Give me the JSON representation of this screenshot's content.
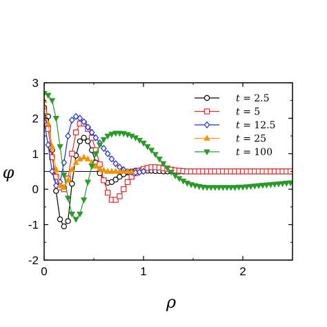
{
  "chart_data": {
    "type": "line",
    "xlabel": "ρ",
    "ylabel": "φ",
    "xlim": [
      0,
      2.5
    ],
    "ylim": [
      -2,
      3
    ],
    "xticks": [
      0,
      1,
      2
    ],
    "yticks": [
      -2,
      -1,
      0,
      1,
      2,
      3
    ],
    "xtick_labels": [
      "0",
      "1",
      "2"
    ],
    "ytick_labels": [
      "-2",
      "-1",
      "0",
      "1",
      "2",
      "3"
    ],
    "grid": false,
    "legend_position": "top-right",
    "reference_line": {
      "y": 0.5
    },
    "series": [
      {
        "name": "t = 2.5",
        "label_var": "t",
        "label_val": "= 2.5",
        "color": "#000000",
        "marker": "circle",
        "x": [
          0.0,
          0.04,
          0.08,
          0.12,
          0.16,
          0.2,
          0.24,
          0.28,
          0.32,
          0.36,
          0.4,
          0.44,
          0.48,
          0.52,
          0.56,
          0.6,
          0.64,
          0.68,
          0.72,
          0.76,
          0.8,
          0.84,
          0.88,
          0.92,
          0.96,
          1.0,
          1.04,
          1.08,
          1.12,
          1.16,
          1.2,
          1.24,
          1.28,
          1.32,
          1.36,
          1.4,
          1.44,
          1.48,
          1.52,
          1.56,
          1.6,
          1.64,
          1.68,
          1.72,
          1.76,
          1.8,
          1.84,
          1.88,
          1.92,
          1.96,
          2.0,
          2.04,
          2.08,
          2.12,
          2.16,
          2.2,
          2.24,
          2.28,
          2.32,
          2.36,
          2.4,
          2.44,
          2.48
        ],
        "y": [
          2.3,
          2.05,
          1.1,
          -0.05,
          -0.85,
          -1.05,
          -0.9,
          0.15,
          0.95,
          1.35,
          1.45,
          1.35,
          1.1,
          0.75,
          0.45,
          0.25,
          0.18,
          0.2,
          0.27,
          0.35,
          0.42,
          0.47,
          0.5,
          0.52,
          0.53,
          0.53,
          0.52,
          0.52,
          0.51,
          0.51,
          0.5,
          0.5,
          0.5,
          0.5,
          0.5,
          0.5,
          0.5,
          0.5,
          0.5,
          0.5,
          0.5,
          0.5,
          0.5,
          0.5,
          0.5,
          0.5,
          0.5,
          0.5,
          0.5,
          0.5,
          0.5,
          0.5,
          0.5,
          0.5,
          0.5,
          0.5,
          0.5,
          0.5,
          0.5,
          0.5,
          0.5,
          0.5,
          0.5
        ]
      },
      {
        "name": "t = 5",
        "label_var": "t",
        "label_val": "= 5",
        "color": "#e02a2a",
        "marker": "square",
        "x": [
          0.0,
          0.04,
          0.08,
          0.12,
          0.16,
          0.2,
          0.24,
          0.28,
          0.32,
          0.36,
          0.4,
          0.44,
          0.48,
          0.52,
          0.56,
          0.6,
          0.64,
          0.68,
          0.72,
          0.76,
          0.8,
          0.84,
          0.88,
          0.92,
          0.96,
          1.0,
          1.04,
          1.08,
          1.12,
          1.16,
          1.2,
          1.24,
          1.28,
          1.32,
          1.36,
          1.4,
          1.44,
          1.48,
          1.52,
          1.56,
          1.6,
          1.64,
          1.68,
          1.72,
          1.76,
          1.8,
          1.84,
          1.88,
          1.92,
          1.96,
          2.0,
          2.04,
          2.08,
          2.12,
          2.16,
          2.2,
          2.24,
          2.28,
          2.32,
          2.36,
          2.4,
          2.44,
          2.48
        ],
        "y": [
          2.2,
          1.7,
          0.9,
          0.35,
          0.05,
          0.0,
          0.3,
          1.0,
          1.6,
          1.85,
          1.85,
          1.7,
          1.45,
          1.1,
          0.7,
          0.25,
          -0.1,
          -0.3,
          -0.3,
          -0.2,
          0.0,
          0.2,
          0.35,
          0.45,
          0.52,
          0.57,
          0.6,
          0.62,
          0.62,
          0.61,
          0.59,
          0.57,
          0.55,
          0.53,
          0.52,
          0.51,
          0.5,
          0.5,
          0.5,
          0.5,
          0.5,
          0.5,
          0.5,
          0.5,
          0.5,
          0.5,
          0.5,
          0.5,
          0.5,
          0.5,
          0.5,
          0.5,
          0.5,
          0.5,
          0.5,
          0.5,
          0.5,
          0.5,
          0.5,
          0.5,
          0.5,
          0.5,
          0.5
        ]
      },
      {
        "name": "t = 12.5",
        "label_var": "t",
        "label_val": "= 12.5",
        "color": "#1a2ed6",
        "marker": "diamond",
        "x": [
          0.0,
          0.04,
          0.08,
          0.12,
          0.16,
          0.2,
          0.24,
          0.28,
          0.32,
          0.36,
          0.4,
          0.44,
          0.48,
          0.52,
          0.56,
          0.6,
          0.64,
          0.68,
          0.72,
          0.76,
          0.8,
          0.84,
          0.88,
          0.92,
          0.96,
          1.0
        ],
        "y": [
          1.9,
          1.25,
          0.5,
          0.1,
          0.2,
          0.75,
          1.5,
          1.95,
          2.05,
          2.0,
          1.9,
          1.75,
          1.6,
          1.45,
          1.3,
          1.15,
          1.0,
          0.85,
          0.72,
          0.62,
          0.55,
          0.5,
          0.48,
          0.47,
          0.48,
          0.5
        ]
      },
      {
        "name": "t = 25",
        "label_var": "t",
        "label_val": "= 25",
        "color": "#f0940a",
        "marker": "triangle-up",
        "x": [
          0.0,
          0.04,
          0.08,
          0.12,
          0.16,
          0.2,
          0.24,
          0.28,
          0.32,
          0.36,
          0.4,
          0.44,
          0.48,
          0.52,
          0.56,
          0.6,
          0.64,
          0.68,
          0.72,
          0.76,
          0.8,
          0.84,
          0.88
        ],
        "y": [
          2.5,
          1.85,
          1.2,
          0.55,
          0.1,
          0.05,
          0.25,
          0.55,
          0.75,
          0.85,
          0.9,
          0.85,
          0.75,
          0.65,
          0.58,
          0.53,
          0.5,
          0.5,
          0.5,
          0.5,
          0.5,
          0.5,
          0.5
        ]
      },
      {
        "name": "t = 100",
        "label_var": "t",
        "label_val": "= 100",
        "color": "#2a9a2a",
        "marker": "triangle-down",
        "x": [
          0.0,
          0.04,
          0.08,
          0.12,
          0.16,
          0.2,
          0.24,
          0.28,
          0.32,
          0.36,
          0.4,
          0.44,
          0.48,
          0.52,
          0.56,
          0.6,
          0.64,
          0.68,
          0.72,
          0.76,
          0.8,
          0.84,
          0.88,
          0.92,
          0.96,
          1.0,
          1.04,
          1.08,
          1.12,
          1.16,
          1.2,
          1.24,
          1.28,
          1.32,
          1.36,
          1.4,
          1.44,
          1.48,
          1.52,
          1.56,
          1.6,
          1.64,
          1.68,
          1.72,
          1.76,
          1.8,
          1.84,
          1.88,
          1.92,
          1.96,
          2.0,
          2.04,
          2.08,
          2.12,
          2.16,
          2.2,
          2.24,
          2.28,
          2.32,
          2.36,
          2.4,
          2.44,
          2.48
        ],
        "y": [
          2.7,
          2.65,
          2.5,
          2.0,
          1.2,
          0.4,
          -0.25,
          -0.7,
          -0.85,
          -0.7,
          -0.3,
          0.2,
          0.65,
          1.0,
          1.25,
          1.4,
          1.5,
          1.55,
          1.58,
          1.58,
          1.57,
          1.54,
          1.5,
          1.45,
          1.38,
          1.3,
          1.2,
          1.1,
          0.98,
          0.85,
          0.72,
          0.6,
          0.48,
          0.38,
          0.3,
          0.23,
          0.17,
          0.13,
          0.1,
          0.08,
          0.06,
          0.05,
          0.05,
          0.05,
          0.05,
          0.05,
          0.05,
          0.05,
          0.05,
          0.06,
          0.06,
          0.07,
          0.08,
          0.09,
          0.1,
          0.11,
          0.12,
          0.13,
          0.14,
          0.15,
          0.16,
          0.17,
          0.18
        ]
      }
    ]
  }
}
